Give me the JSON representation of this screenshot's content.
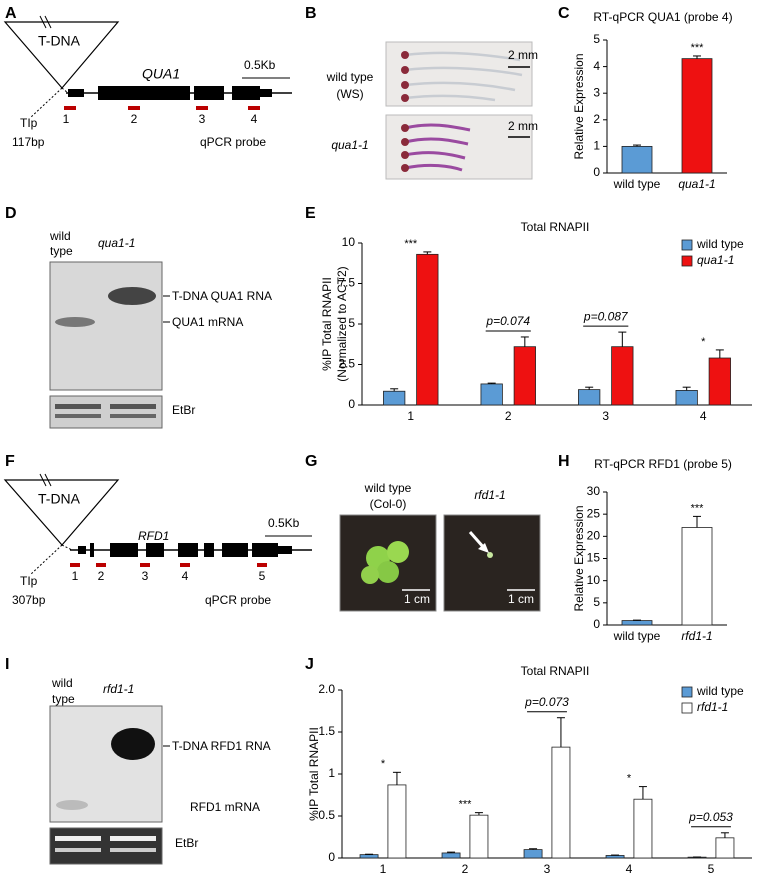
{
  "panel_labels": [
    "A",
    "B",
    "C",
    "D",
    "E",
    "F",
    "G",
    "H",
    "I",
    "J"
  ],
  "diagrams": {
    "A": {
      "insert": "T-DNA",
      "gene": "QUA1",
      "scale": "0.5Kb",
      "probes": [
        "1",
        "2",
        "3",
        "4"
      ],
      "site": "TIp",
      "distance": "117bp",
      "probe_label": "qPCR probe"
    },
    "B": {
      "top_label": [
        "wild type",
        "(WS)"
      ],
      "bottom_label": "qua1-1",
      "scale_top": "2 mm",
      "scale_bottom": "2 mm"
    },
    "D": {
      "lanes": [
        [
          "wild",
          "type"
        ],
        "qua1-1"
      ],
      "bands": [
        "T-DNA QUA1 RNA",
        "QUA1 mRNA"
      ],
      "loading": "EtBr"
    },
    "F": {
      "insert": "T-DNA",
      "gene": "RFD1",
      "scale": "0.5Kb",
      "probes": [
        "1",
        "2",
        "3",
        "4",
        "5"
      ],
      "site": "TIp",
      "distance": "307bp",
      "probe_label": "qPCR probe"
    },
    "G": {
      "left_label": [
        "wild type",
        "(Col-0)"
      ],
      "right_label": "rfd1-1",
      "scale_left": "1 cm",
      "scale_right": "1 cm"
    },
    "I": {
      "lanes": [
        [
          "wild",
          "type"
        ],
        "rfd1-1"
      ],
      "bands": [
        "T-DNA RFD1 RNA",
        "RFD1 mRNA"
      ],
      "loading": "EtBr"
    }
  },
  "chart_data": [
    {
      "type": "bar",
      "title": "RT-qPCR QUA1 (probe 4)",
      "y_label": [
        "Relative Expression"
      ],
      "categories": [
        "wild type",
        "qua1-1"
      ],
      "values": [
        1.0,
        4.3
      ],
      "errors": [
        0.05,
        0.1
      ],
      "colors": [
        "#5b9bd5",
        "#ee1111"
      ],
      "annotations": [
        null,
        "***"
      ],
      "ylim": [
        0,
        5
      ],
      "yticks": [
        0,
        1,
        2,
        3,
        4,
        5
      ]
    },
    {
      "type": "grouped_bar",
      "title": "Total RNAPII",
      "y_label": [
        "%IP Total RNAPII",
        "(Normalized to ACT2)"
      ],
      "categories": [
        "1",
        "2",
        "3",
        "4"
      ],
      "series": [
        {
          "name": "wild type",
          "color": "#5b9bd5",
          "values": [
            0.85,
            1.3,
            0.95,
            0.9
          ],
          "errors": [
            0.15,
            0.05,
            0.15,
            0.2
          ]
        },
        {
          "name": "qua1-1",
          "color": "#ee1111",
          "values": [
            9.3,
            3.6,
            3.6,
            2.9
          ],
          "errors": [
            0.15,
            0.6,
            0.9,
            0.5
          ]
        }
      ],
      "annotations": [
        "***",
        "p=0.074",
        "p=0.087",
        "*"
      ],
      "ylim": [
        0,
        10
      ],
      "yticks": [
        0,
        2.5,
        5,
        7.5,
        10
      ],
      "legend": "top-right"
    },
    {
      "type": "bar",
      "title": "RT-qPCR RFD1 (probe 5)",
      "y_label": [
        "Relative Expression"
      ],
      "categories": [
        "wild type",
        "rfd1-1"
      ],
      "values": [
        1.0,
        22
      ],
      "errors": [
        0.1,
        2.5
      ],
      "colors": [
        "#5b9bd5",
        "#ffffff"
      ],
      "annotations": [
        null,
        "***"
      ],
      "ylim": [
        0,
        30
      ],
      "yticks": [
        0,
        5,
        10,
        15,
        20,
        25,
        30
      ]
    },
    {
      "type": "grouped_bar",
      "title": "Total RNAPII",
      "y_label": [
        "%IP Total RNAPII"
      ],
      "categories": [
        "1",
        "2",
        "3",
        "4",
        "5"
      ],
      "series": [
        {
          "name": "wild type",
          "color": "#5b9bd5",
          "values": [
            0.04,
            0.06,
            0.1,
            0.03,
            0.01
          ],
          "errors": [
            0.005,
            0.01,
            0.01,
            0.005,
            0.002
          ]
        },
        {
          "name": "rfd1-1",
          "color": "#ffffff",
          "values": [
            0.87,
            0.51,
            1.32,
            0.7,
            0.24
          ],
          "errors": [
            0.15,
            0.03,
            0.35,
            0.15,
            0.06
          ]
        }
      ],
      "annotations": [
        "*",
        "***",
        "p=0.073",
        "*",
        "p=0.053"
      ],
      "ylim": [
        0,
        2
      ],
      "yticks": [
        0,
        0.5,
        1,
        1.5,
        {
          "value": 2,
          "label": "2.0"
        }
      ],
      "legend": "top-right"
    }
  ]
}
